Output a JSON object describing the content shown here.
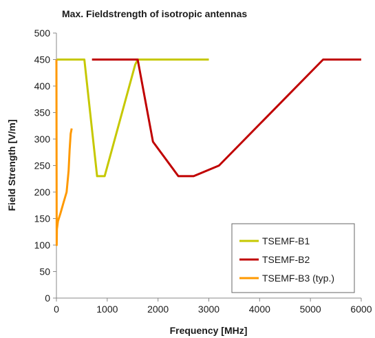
{
  "chart_data": {
    "type": "line",
    "title": "Max. Fieldstrength of isotropic antennas",
    "xlabel": "Frequency [MHz]",
    "ylabel": "Field Strength [V/m]",
    "xlim": [
      0,
      6000
    ],
    "ylim": [
      0,
      500
    ],
    "x_ticks": [
      "0",
      "1000",
      "2000",
      "3000",
      "4000",
      "5000",
      "6000"
    ],
    "y_ticks": [
      "0",
      "50",
      "100",
      "150",
      "200",
      "250",
      "300",
      "350",
      "400",
      "450",
      "500"
    ],
    "grid": false,
    "legend_position": "bottom-right",
    "series": [
      {
        "name": "TSEMF-B1",
        "color": "#c6c800",
        "x": [
          10,
          550,
          800,
          950,
          1550,
          1600,
          3000
        ],
        "y": [
          450,
          450,
          230,
          230,
          440,
          450,
          450
        ]
      },
      {
        "name": "TSEMF-B2",
        "color": "#c00000",
        "x": [
          700,
          1600,
          1900,
          2400,
          2700,
          3200,
          5250,
          6000
        ],
        "y": [
          450,
          450,
          295,
          230,
          230,
          250,
          450,
          450
        ]
      },
      {
        "name": "TSEMF-B3 (typ.)",
        "color": "#ff9900",
        "x": [
          0,
          5,
          10,
          30,
          80,
          140,
          200,
          240,
          260,
          280,
          300
        ],
        "y": [
          450,
          100,
          130,
          145,
          160,
          180,
          200,
          240,
          280,
          310,
          320
        ]
      }
    ]
  }
}
